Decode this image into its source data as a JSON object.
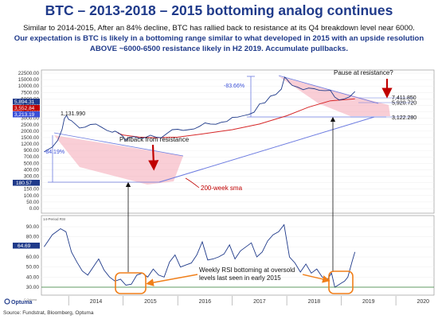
{
  "header": {
    "title": "BTC – 2013-2018 – 2015 bottoming analog continues",
    "subtitle_line1": "Similar to 2014-2015, After an 84% decline, BTC has rallied back to resistance at its Q4 breakdown level near 6000.",
    "subtitle_line2": "Our expectation is BTC is likely in a bottoming range similar to what developed in 2015 with an upside resolution ABOVE ~6000-6500 resistance likely in H2 2019. Accumulate pullbacks."
  },
  "footer": {
    "source": "Source: Fundstrat, Bloomberg, Optuma",
    "logo": "Optuma",
    "copyright": "© Optuma"
  },
  "colors": {
    "price": "#1f3a8a",
    "sma": "#d62728",
    "band": "#f4a5b5",
    "trend": "#6c7be0",
    "rsi": "#1f3a8a",
    "arrow_red": "#c00000",
    "orange": "#f07f1a",
    "green": "#2e7d32"
  },
  "chart_data": [
    {
      "type": "line",
      "scale": "log",
      "series": [
        {
          "name": "",
          "x": [
            2013.55,
            2013.7,
            2013.8,
            2013.88,
            2013.92,
            2013.96,
            2014.0,
            2014.05,
            2014.12,
            2014.2,
            2014.3,
            2014.4,
            2014.5,
            2014.6,
            2014.7,
            2014.8,
            2014.85,
            2014.92,
            2015.0,
            2015.05,
            2015.1,
            2015.2,
            2015.3,
            2015.4,
            2015.5,
            2015.6,
            2015.7,
            2015.8,
            2015.9,
            2016.0,
            2016.1,
            2016.2,
            2016.3,
            2016.4,
            2016.5,
            2016.6,
            2016.7,
            2016.8,
            2016.9,
            2017.0,
            2017.1,
            2017.2,
            2017.3,
            2017.4,
            2017.5,
            2017.6,
            2017.7,
            2017.8,
            2017.9,
            2017.96,
            2018.0,
            2018.05,
            2018.1,
            2018.2,
            2018.3,
            2018.4,
            2018.5,
            2018.6,
            2018.7,
            2018.8,
            2018.88,
            2018.96,
            2019.05,
            2019.15,
            2019.25
          ],
          "y": [
            90,
            125,
            200,
            430,
            900,
            1131.99,
            850,
            780,
            620,
            470,
            500,
            600,
            620,
            500,
            400,
            350,
            380,
            330,
            260,
            200,
            240,
            260,
            230,
            240,
            285,
            250,
            240,
            320,
            420,
            430,
            400,
            420,
            440,
            530,
            670,
            620,
            610,
            700,
            740,
            980,
            1000,
            1100,
            1200,
            1400,
            2500,
            2700,
            4300,
            4800,
            7000,
            16000,
            14000,
            11000,
            9000,
            8000,
            6700,
            7500,
            7200,
            6400,
            6300,
            6400,
            4000,
            3300,
            3500,
            4100,
            5900
          ]
        },
        {
          "name": "200-week sma",
          "x": [
            2014.9,
            2015.0,
            2015.3,
            2015.6,
            2016.0,
            2016.5,
            2017.0,
            2017.5,
            2018.0,
            2018.4,
            2018.8,
            2019.25
          ],
          "y": [
            330,
            290,
            250,
            240,
            250,
            320,
            420,
            620,
            1100,
            2000,
            3100,
            3550
          ]
        }
      ],
      "y_ticks": [
        "22500.00",
        "15000.00",
        "10000.00",
        "7500.00",
        "6000.00",
        "4500.00",
        "3500.00",
        "3000.00",
        "2500.00",
        "2000.00",
        "1500.00",
        "1200.00",
        "900.00",
        "700.00",
        "500.00",
        "400.00",
        "300.00",
        "200.00",
        "150.00",
        "100.00",
        "50.00",
        "0.00"
      ],
      "price_tags": [
        "5,894.31",
        "3,552.84",
        "3,213.19",
        "180.57"
      ],
      "value_labels": [
        "1,131.990",
        "7,411.850",
        "5,920.720",
        "3,122.280"
      ],
      "declines": [
        "-84.19%",
        "-83.66%"
      ]
    },
    {
      "type": "line",
      "series": [
        {
          "name": "",
          "x": [
            2013.55,
            2013.7,
            2013.85,
            2013.95,
            2014.05,
            2014.15,
            2014.25,
            2014.35,
            2014.45,
            2014.55,
            2014.65,
            2014.75,
            2014.85,
            2014.95,
            2015.05,
            2015.15,
            2015.25,
            2015.35,
            2015.45,
            2015.55,
            2015.65,
            2015.75,
            2015.85,
            2015.95,
            2016.05,
            2016.15,
            2016.25,
            2016.35,
            2016.45,
            2016.55,
            2016.65,
            2016.75,
            2016.85,
            2016.95,
            2017.05,
            2017.15,
            2017.25,
            2017.35,
            2017.45,
            2017.55,
            2017.65,
            2017.75,
            2017.85,
            2017.95,
            2018.05,
            2018.15,
            2018.25,
            2018.35,
            2018.45,
            2018.55,
            2018.65,
            2018.75,
            2018.82,
            2018.88,
            2018.94,
            2019.0,
            2019.06,
            2019.12,
            2019.2,
            2019.25
          ],
          "y": [
            70,
            82,
            88,
            85,
            65,
            55,
            46,
            42,
            50,
            58,
            47,
            40,
            36,
            38,
            32,
            33,
            42,
            44,
            40,
            48,
            42,
            40,
            55,
            62,
            50,
            52,
            54,
            62,
            75,
            57,
            58,
            60,
            63,
            72,
            58,
            66,
            70,
            74,
            60,
            65,
            76,
            82,
            85,
            92,
            60,
            54,
            45,
            53,
            44,
            48,
            40,
            38,
            44,
            30,
            32,
            34,
            36,
            40,
            56,
            65
          ]
        }
      ],
      "y_ticks": [
        "90.00",
        "80.00",
        "70.00",
        "60.00",
        "50.00",
        "40.00",
        "30.00"
      ],
      "rsi_tag": "64.69",
      "panel_label": "14-Period RSI"
    }
  ],
  "x_axis": {
    "ticks": [
      "2014",
      "2015",
      "2016",
      "2017",
      "2018",
      "2019",
      "2020"
    ]
  },
  "annotations": {
    "pullback": "Pullback from resistance",
    "pause": "Pause at resistance?",
    "sma": "200-week sma",
    "rsi_line1": "Weekly RSI bottoming at  oversold",
    "rsi_line2": "levels last seen in early 2015"
  }
}
